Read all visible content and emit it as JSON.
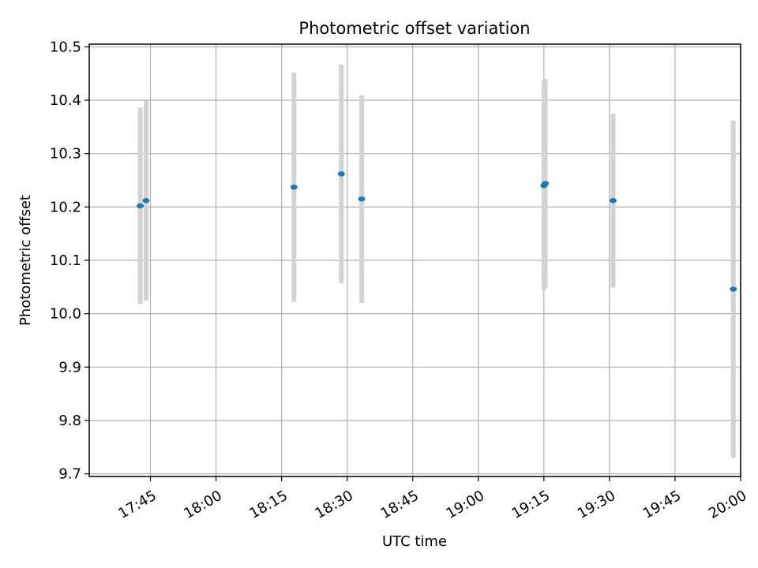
{
  "chart_data": {
    "type": "scatter",
    "title": "Photometric offset variation",
    "xlabel": "UTC time",
    "ylabel": "Photometric offset",
    "x_range_minutes": [
      1051,
      1200
    ],
    "ylim": [
      9.695,
      10.505
    ],
    "grid": true,
    "x_tick_minutes": [
      1065,
      1080,
      1095,
      1110,
      1125,
      1140,
      1155,
      1170,
      1185,
      1200
    ],
    "x_tick_labels": [
      "17:45",
      "18:00",
      "18:15",
      "18:30",
      "18:45",
      "19:00",
      "19:15",
      "19:30",
      "19:45",
      "20:00"
    ],
    "y_ticks": [
      9.7,
      9.8,
      9.9,
      10.0,
      10.1,
      10.2,
      10.3,
      10.4,
      10.5
    ],
    "y_tick_labels": [
      "9.7",
      "9.8",
      "9.9",
      "10.0",
      "10.1",
      "10.2",
      "10.3",
      "10.4",
      "10.5"
    ],
    "point_color": "#1f77b4",
    "errorbar_color": "#d3d3d3",
    "points": [
      {
        "time": "17:42:40",
        "minutes": 1062.67,
        "value": 10.202,
        "lower": 10.018,
        "upper": 10.386
      },
      {
        "time": "17:44:00",
        "minutes": 1064.0,
        "value": 10.212,
        "lower": 10.025,
        "upper": 10.399
      },
      {
        "time": "18:17:50",
        "minutes": 1097.83,
        "value": 10.237,
        "lower": 10.022,
        "upper": 10.452
      },
      {
        "time": "18:28:40",
        "minutes": 1108.67,
        "value": 10.262,
        "lower": 10.057,
        "upper": 10.467
      },
      {
        "time": "18:33:20",
        "minutes": 1113.33,
        "value": 10.215,
        "lower": 10.02,
        "upper": 10.409
      },
      {
        "time": "19:15:00",
        "minutes": 1155.0,
        "value": 10.24,
        "lower": 10.044,
        "upper": 10.436
      },
      {
        "time": "19:15:20",
        "minutes": 1155.33,
        "value": 10.244,
        "lower": 10.048,
        "upper": 10.44
      },
      {
        "time": "19:30:50",
        "minutes": 1170.83,
        "value": 10.212,
        "lower": 10.049,
        "upper": 10.375
      },
      {
        "time": "19:58:20",
        "minutes": 1198.33,
        "value": 10.046,
        "lower": 9.73,
        "upper": 10.362
      }
    ]
  }
}
